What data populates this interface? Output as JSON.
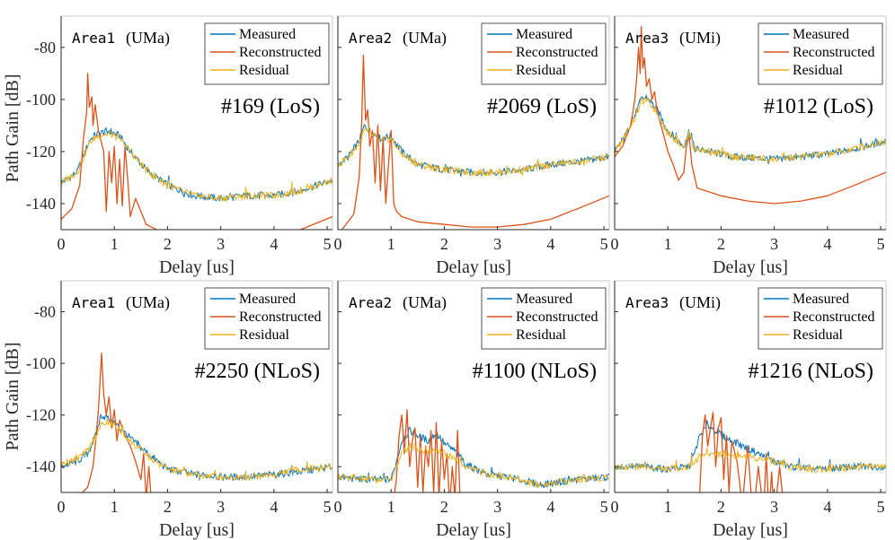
{
  "figure": {
    "ylabel": "Path Gain [dB]",
    "xlabel": "Delay [us]",
    "legend": [
      "Measured",
      "Reconstructed",
      "Residual"
    ]
  },
  "colors": {
    "measured": "#0072BD",
    "reconstructed": "#D95319",
    "residual": "#EDB120",
    "axis": "#262626"
  },
  "chart_data": [
    {
      "type": "line",
      "area_name": "Area1",
      "area_type": "(UMa)",
      "sample": "#169 (LoS)",
      "xlim": [
        0,
        5.1
      ],
      "ylim": [
        -150,
        -68
      ],
      "xticks": [
        0,
        1,
        2,
        3,
        4,
        5
      ],
      "yticks": [
        -140,
        -120,
        -100,
        -80
      ],
      "series": [
        {
          "name": "Measured",
          "kind": "measured",
          "x": [
            0,
            0.3,
            0.45,
            0.55,
            0.7,
            0.9,
            1.1,
            1.3,
            1.6,
            2.0,
            2.5,
            3.0,
            3.5,
            4.0,
            4.5,
            5.1
          ],
          "y": [
            -132,
            -128,
            -120,
            -115,
            -113,
            -112,
            -114,
            -120,
            -127,
            -133,
            -137,
            -138,
            -137,
            -137,
            -135,
            -131
          ]
        },
        {
          "name": "Reconstructed",
          "kind": "reconstructed",
          "x": [
            0,
            0.2,
            0.35,
            0.42,
            0.48,
            0.5,
            0.53,
            0.58,
            0.6,
            0.64,
            0.7,
            0.8,
            0.85,
            0.9,
            0.95,
            1.0,
            1.05,
            1.1,
            1.15,
            1.2,
            1.25,
            1.3,
            1.4,
            1.6,
            2.0,
            2.5,
            3.0,
            3.5,
            4.0,
            4.5,
            5.1
          ],
          "y": [
            -146,
            -142,
            -133,
            -115,
            -105,
            -90,
            -103,
            -99,
            -110,
            -102,
            -112,
            -120,
            -143,
            -120,
            -132,
            -118,
            -140,
            -123,
            -141,
            -118,
            -130,
            -145,
            -138,
            -148,
            -152,
            -154,
            -155,
            -154,
            -153,
            -150,
            -145
          ]
        },
        {
          "name": "Residual",
          "kind": "residual",
          "x": [
            0,
            0.3,
            0.45,
            0.55,
            0.7,
            0.9,
            1.1,
            1.3,
            1.6,
            2.0,
            2.5,
            3.0,
            3.5,
            4.0,
            4.5,
            5.1
          ],
          "y": [
            -132,
            -128,
            -121,
            -116,
            -114,
            -113,
            -115,
            -120,
            -127,
            -133,
            -137,
            -138,
            -137,
            -137,
            -135,
            -131
          ]
        }
      ]
    },
    {
      "type": "line",
      "area_name": "Area2",
      "area_type": "(UMa)",
      "sample": "#2069 (LoS)",
      "xlim": [
        0,
        5.1
      ],
      "ylim": [
        -150,
        -68
      ],
      "xticks": [
        0,
        1,
        2,
        3,
        4,
        5
      ],
      "yticks": [
        -140,
        -120,
        -100,
        -80
      ],
      "series": [
        {
          "name": "Measured",
          "kind": "measured",
          "x": [
            0,
            0.2,
            0.4,
            0.5,
            0.6,
            0.8,
            1.0,
            1.2,
            1.5,
            2.0,
            2.5,
            3.0,
            3.5,
            4.0,
            4.5,
            5.1
          ],
          "y": [
            -125,
            -122,
            -116,
            -110,
            -112,
            -115,
            -114,
            -120,
            -125,
            -127,
            -128,
            -128,
            -127,
            -125,
            -124,
            -122
          ]
        },
        {
          "name": "Reconstructed",
          "kind": "reconstructed",
          "x": [
            0,
            0.3,
            0.4,
            0.45,
            0.48,
            0.52,
            0.56,
            0.6,
            0.65,
            0.7,
            0.75,
            0.8,
            0.85,
            0.9,
            0.95,
            1.0,
            1.05,
            1.1,
            1.2,
            1.5,
            2.0,
            2.5,
            3.0,
            3.5,
            4.0,
            4.5,
            5.1
          ],
          "y": [
            -152,
            -144,
            -130,
            -108,
            -83,
            -108,
            -104,
            -118,
            -112,
            -132,
            -110,
            -135,
            -115,
            -140,
            -125,
            -112,
            -140,
            -143,
            -145,
            -147,
            -148,
            -149,
            -149,
            -148,
            -146,
            -142,
            -137
          ]
        },
        {
          "name": "Residual",
          "kind": "residual",
          "x": [
            0,
            0.2,
            0.4,
            0.5,
            0.6,
            0.8,
            1.0,
            1.2,
            1.5,
            2.0,
            2.5,
            3.0,
            3.5,
            4.0,
            4.5,
            5.1
          ],
          "y": [
            -125,
            -122,
            -117,
            -112,
            -113,
            -116,
            -115,
            -121,
            -125,
            -127,
            -128,
            -128,
            -127,
            -125,
            -124,
            -122
          ]
        }
      ]
    },
    {
      "type": "line",
      "area_name": "Area3",
      "area_type": "(UMi)",
      "sample": "#1012 (LoS)",
      "xlim": [
        0,
        5.1
      ],
      "ylim": [
        -150,
        -68
      ],
      "xticks": [
        0,
        1,
        2,
        3,
        4,
        5
      ],
      "yticks": [
        -140,
        -120,
        -100,
        -80
      ],
      "series": [
        {
          "name": "Measured",
          "kind": "measured",
          "x": [
            0,
            0.2,
            0.4,
            0.5,
            0.6,
            0.8,
            1.0,
            1.3,
            1.4,
            1.5,
            1.8,
            2.2,
            3.0,
            3.5,
            4.0,
            4.5,
            5.1
          ],
          "y": [
            -120,
            -114,
            -105,
            -100,
            -99,
            -104,
            -112,
            -118,
            -112,
            -119,
            -120,
            -122,
            -123,
            -122,
            -121,
            -119,
            -116
          ]
        },
        {
          "name": "Reconstructed",
          "kind": "reconstructed",
          "x": [
            0,
            0.15,
            0.3,
            0.38,
            0.42,
            0.45,
            0.48,
            0.5,
            0.53,
            0.56,
            0.6,
            0.65,
            0.7,
            0.75,
            0.8,
            0.9,
            1.0,
            1.1,
            1.2,
            1.3,
            1.35,
            1.4,
            1.45,
            1.55,
            2.0,
            2.5,
            3.0,
            3.5,
            4.0,
            4.5,
            5.1
          ],
          "y": [
            -122,
            -118,
            -110,
            -100,
            -90,
            -80,
            -90,
            -72,
            -88,
            -84,
            -95,
            -92,
            -100,
            -97,
            -105,
            -112,
            -120,
            -125,
            -131,
            -128,
            -118,
            -114,
            -125,
            -134,
            -137,
            -139,
            -140,
            -139,
            -137,
            -133,
            -128
          ]
        },
        {
          "name": "Residual",
          "kind": "residual",
          "x": [
            0,
            0.2,
            0.4,
            0.5,
            0.6,
            0.8,
            1.0,
            1.3,
            1.4,
            1.5,
            1.8,
            2.2,
            3.0,
            3.5,
            4.0,
            4.5,
            5.1
          ],
          "y": [
            -120,
            -114,
            -106,
            -101,
            -100,
            -105,
            -113,
            -118,
            -113,
            -119,
            -120,
            -122,
            -123,
            -122,
            -121,
            -119,
            -116
          ]
        }
      ]
    },
    {
      "type": "line",
      "area_name": "Area1",
      "area_type": "(UMa)",
      "sample": "#2250 (NLoS)",
      "xlim": [
        0,
        5.1
      ],
      "ylim": [
        -150,
        -68
      ],
      "xticks": [
        0,
        1,
        2,
        3,
        4,
        5
      ],
      "yticks": [
        -140,
        -120,
        -100,
        -80
      ],
      "series": [
        {
          "name": "Measured",
          "kind": "measured",
          "x": [
            0,
            0.3,
            0.5,
            0.65,
            0.75,
            0.85,
            1.0,
            1.2,
            1.4,
            1.7,
            2.0,
            2.5,
            3.0,
            3.5,
            4.0,
            4.5,
            5.1
          ],
          "y": [
            -140,
            -138,
            -135,
            -128,
            -120,
            -121,
            -123,
            -127,
            -131,
            -136,
            -141,
            -143,
            -144,
            -144,
            -143,
            -142,
            -140
          ]
        },
        {
          "name": "Reconstructed",
          "kind": "reconstructed",
          "x": [
            0,
            0.3,
            0.5,
            0.6,
            0.65,
            0.7,
            0.73,
            0.76,
            0.8,
            0.85,
            0.9,
            0.95,
            1.0,
            1.05,
            1.1,
            1.2,
            1.3,
            1.4,
            1.5,
            1.55,
            1.6,
            1.65,
            1.7,
            1.8,
            2.0
          ],
          "y": [
            -154,
            -152,
            -148,
            -140,
            -130,
            -118,
            -108,
            -96,
            -112,
            -120,
            -113,
            -125,
            -118,
            -130,
            -122,
            -128,
            -132,
            -138,
            -145,
            -135,
            -152,
            -140,
            -155,
            -158,
            -160
          ]
        },
        {
          "name": "Residual",
          "kind": "residual",
          "x": [
            0,
            0.3,
            0.5,
            0.65,
            0.75,
            0.85,
            1.0,
            1.2,
            1.4,
            1.7,
            2.0,
            2.5,
            3.0,
            3.5,
            4.0,
            4.5,
            5.1
          ],
          "y": [
            -139,
            -137,
            -134,
            -128,
            -124,
            -123,
            -124,
            -128,
            -132,
            -137,
            -141,
            -143,
            -144,
            -144,
            -143,
            -141,
            -140
          ]
        }
      ]
    },
    {
      "type": "line",
      "area_name": "Area2",
      "area_type": "(UMa)",
      "sample": "#1100 (NLoS)",
      "xlim": [
        0,
        5.1
      ],
      "ylim": [
        -150,
        -68
      ],
      "xticks": [
        0,
        1,
        2,
        3,
        4,
        5
      ],
      "yticks": [
        -140,
        -120,
        -100,
        -80
      ],
      "series": [
        {
          "name": "Measured",
          "kind": "measured",
          "x": [
            0,
            0.5,
            1.0,
            1.1,
            1.2,
            1.35,
            1.5,
            1.7,
            1.85,
            2.0,
            2.2,
            2.4,
            2.8,
            3.2,
            3.8,
            4.5,
            5.1
          ],
          "y": [
            -144,
            -145,
            -145,
            -138,
            -130,
            -126,
            -128,
            -130,
            -127,
            -131,
            -134,
            -139,
            -143,
            -144,
            -147,
            -145,
            -144
          ]
        },
        {
          "name": "Reconstructed",
          "kind": "reconstructed",
          "x": [
            1.0,
            1.1,
            1.15,
            1.2,
            1.25,
            1.3,
            1.35,
            1.4,
            1.45,
            1.5,
            1.55,
            1.6,
            1.65,
            1.7,
            1.75,
            1.8,
            1.85,
            1.9,
            1.95,
            2.0,
            2.05,
            2.1,
            2.15,
            2.2,
            2.25,
            2.3,
            2.35
          ],
          "y": [
            -160,
            -145,
            -128,
            -120,
            -135,
            -118,
            -140,
            -130,
            -125,
            -148,
            -128,
            -150,
            -132,
            -140,
            -126,
            -150,
            -123,
            -152,
            -130,
            -145,
            -135,
            -155,
            -140,
            -152,
            -126,
            -155,
            -160
          ]
        },
        {
          "name": "Residual",
          "kind": "residual",
          "x": [
            0,
            0.5,
            1.0,
            1.1,
            1.2,
            1.35,
            1.5,
            1.7,
            1.85,
            2.0,
            2.2,
            2.4,
            2.8,
            3.2,
            3.8,
            4.5,
            5.1
          ],
          "y": [
            -144,
            -145,
            -145,
            -140,
            -135,
            -132,
            -133,
            -134,
            -133,
            -135,
            -137,
            -140,
            -143,
            -144,
            -147,
            -145,
            -144
          ]
        }
      ]
    },
    {
      "type": "line",
      "area_name": "Area3",
      "area_type": "(UMi)",
      "sample": "#1216 (NLoS)",
      "xlim": [
        0,
        5.1
      ],
      "ylim": [
        -150,
        -68
      ],
      "xticks": [
        0,
        1,
        2,
        3,
        4,
        5
      ],
      "yticks": [
        -140,
        -120,
        -100,
        -80
      ],
      "series": [
        {
          "name": "Measured",
          "kind": "measured",
          "x": [
            0,
            0.5,
            1.0,
            1.4,
            1.5,
            1.6,
            1.75,
            1.9,
            2.1,
            2.3,
            2.5,
            2.8,
            3.0,
            3.3,
            3.8,
            4.5,
            5.1
          ],
          "y": [
            -140,
            -140,
            -141,
            -140,
            -135,
            -128,
            -124,
            -126,
            -129,
            -131,
            -133,
            -136,
            -138,
            -140,
            -141,
            -140,
            -140
          ]
        },
        {
          "name": "Reconstructed",
          "kind": "reconstructed",
          "x": [
            1.5,
            1.6,
            1.65,
            1.7,
            1.75,
            1.8,
            1.85,
            1.9,
            1.95,
            2.0,
            2.05,
            2.1,
            2.15,
            2.2,
            2.3,
            2.4,
            2.5,
            2.6,
            2.7,
            2.8,
            2.85,
            2.9,
            2.95,
            3.0,
            3.1,
            3.2
          ],
          "y": [
            -160,
            -150,
            -128,
            -120,
            -132,
            -125,
            -119,
            -140,
            -125,
            -121,
            -145,
            -128,
            -150,
            -130,
            -138,
            -155,
            -132,
            -160,
            -140,
            -158,
            -135,
            -160,
            -142,
            -160,
            -140,
            -160
          ]
        },
        {
          "name": "Residual",
          "kind": "residual",
          "x": [
            0,
            0.5,
            1.0,
            1.4,
            1.5,
            1.6,
            1.75,
            1.9,
            2.1,
            2.3,
            2.5,
            2.8,
            3.0,
            3.3,
            3.8,
            4.5,
            5.1
          ],
          "y": [
            -140,
            -140,
            -141,
            -140,
            -138,
            -136,
            -135,
            -135,
            -135,
            -136,
            -136,
            -137,
            -138,
            -140,
            -141,
            -140,
            -140
          ]
        }
      ]
    }
  ]
}
